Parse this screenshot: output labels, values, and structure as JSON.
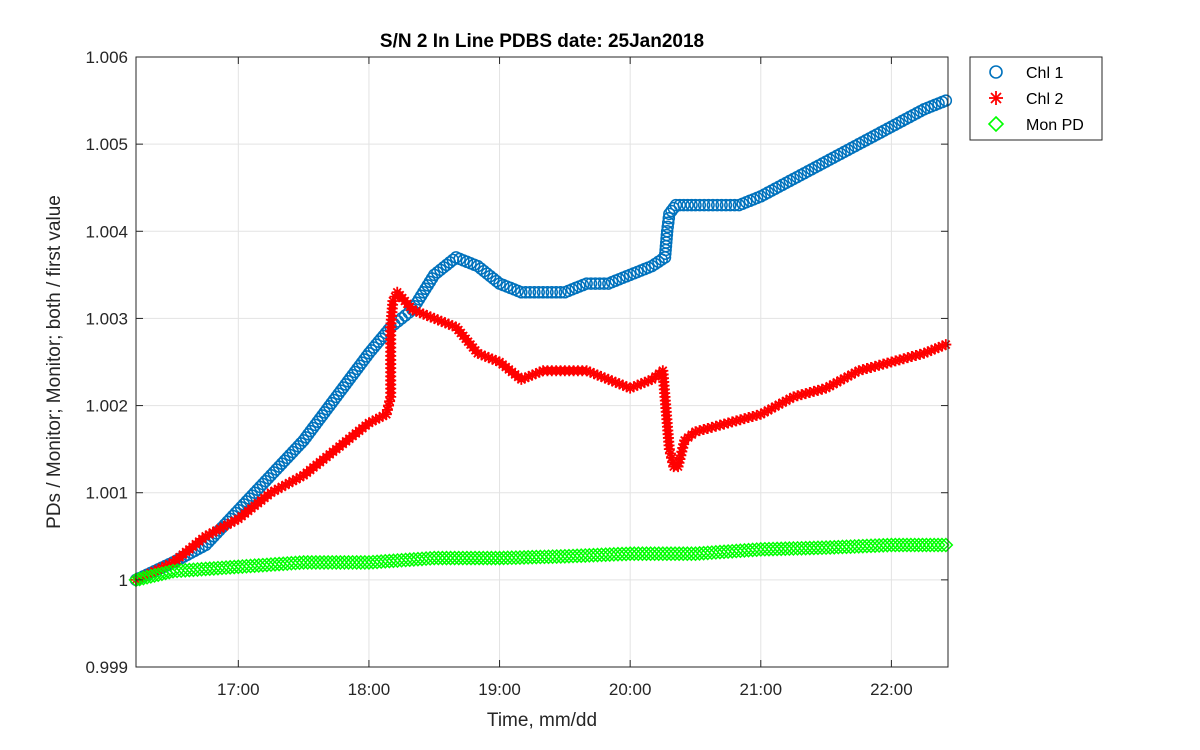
{
  "chart_data": {
    "type": "scatter",
    "title": "S/N 2 In Line PDBS date: 25Jan2018",
    "xlabel": "Time, mm/dd",
    "ylabel": "PDs / Monitor; Monitor; both / first value",
    "xlim": [
      "16:13",
      "22:26"
    ],
    "ylim": [
      0.999,
      1.006
    ],
    "xticks": [
      "17:00",
      "18:00",
      "19:00",
      "20:00",
      "21:00",
      "22:00"
    ],
    "yticks": [
      "0.999",
      "1",
      "1.001",
      "1.002",
      "1.003",
      "1.004",
      "1.005",
      "1.006"
    ],
    "grid": true,
    "legend": "top-right, outside plot",
    "series": [
      {
        "name": "Chl 1",
        "marker": "circle",
        "color": "#0072BD",
        "points": [
          [
            "16:13",
            1.0
          ],
          [
            "16:30",
            1.0002
          ],
          [
            "16:45",
            1.0004
          ],
          [
            "17:00",
            1.0008
          ],
          [
            "17:15",
            1.0012
          ],
          [
            "17:30",
            1.0016
          ],
          [
            "17:45",
            1.0021
          ],
          [
            "18:00",
            1.0026
          ],
          [
            "18:10",
            1.0029
          ],
          [
            "18:15",
            1.003
          ],
          [
            "18:20",
            1.0031
          ],
          [
            "18:30",
            1.0035
          ],
          [
            "18:40",
            1.0037
          ],
          [
            "18:50",
            1.0036
          ],
          [
            "19:00",
            1.0034
          ],
          [
            "19:10",
            1.0033
          ],
          [
            "19:20",
            1.0033
          ],
          [
            "19:30",
            1.0033
          ],
          [
            "19:40",
            1.0034
          ],
          [
            "19:50",
            1.0034
          ],
          [
            "20:00",
            1.0035
          ],
          [
            "20:10",
            1.0036
          ],
          [
            "20:16",
            1.0037
          ],
          [
            "20:17",
            1.004
          ],
          [
            "20:18",
            1.0042
          ],
          [
            "20:21",
            1.0043
          ],
          [
            "20:30",
            1.0043
          ],
          [
            "20:40",
            1.0043
          ],
          [
            "20:50",
            1.0043
          ],
          [
            "21:00",
            1.0044
          ],
          [
            "21:15",
            1.0046
          ],
          [
            "21:30",
            1.0048
          ],
          [
            "21:45",
            1.005
          ],
          [
            "22:00",
            1.0052
          ],
          [
            "22:15",
            1.0054
          ],
          [
            "22:25",
            1.0055
          ]
        ]
      },
      {
        "name": "Chl 2",
        "marker": "asterisk",
        "color": "#FF0000",
        "points": [
          [
            "16:13",
            1.0
          ],
          [
            "16:30",
            1.0002
          ],
          [
            "16:45",
            1.0005
          ],
          [
            "17:00",
            1.0007
          ],
          [
            "17:15",
            1.001
          ],
          [
            "17:30",
            1.0012
          ],
          [
            "17:45",
            1.0015
          ],
          [
            "18:00",
            1.0018
          ],
          [
            "18:08",
            1.0019
          ],
          [
            "18:10",
            1.0021
          ],
          [
            "18:10",
            1.0029
          ],
          [
            "18:11",
            1.0032
          ],
          [
            "18:13",
            1.0033
          ],
          [
            "18:20",
            1.0031
          ],
          [
            "18:30",
            1.003
          ],
          [
            "18:40",
            1.0029
          ],
          [
            "18:50",
            1.0026
          ],
          [
            "19:00",
            1.0025
          ],
          [
            "19:10",
            1.0023
          ],
          [
            "19:20",
            1.0024
          ],
          [
            "19:30",
            1.0024
          ],
          [
            "19:40",
            1.0024
          ],
          [
            "19:50",
            1.0023
          ],
          [
            "20:00",
            1.0022
          ],
          [
            "20:10",
            1.0023
          ],
          [
            "20:15",
            1.0024
          ],
          [
            "20:16",
            1.0021
          ],
          [
            "20:17",
            1.0018
          ],
          [
            "20:18",
            1.0015
          ],
          [
            "20:20",
            1.0013
          ],
          [
            "20:22",
            1.0013
          ],
          [
            "20:25",
            1.0016
          ],
          [
            "20:30",
            1.0017
          ],
          [
            "20:45",
            1.0018
          ],
          [
            "21:00",
            1.0019
          ],
          [
            "21:15",
            1.0021
          ],
          [
            "21:30",
            1.0022
          ],
          [
            "21:45",
            1.0024
          ],
          [
            "22:00",
            1.0025
          ],
          [
            "22:15",
            1.0026
          ],
          [
            "22:25",
            1.0027
          ]
        ]
      },
      {
        "name": "Mon PD",
        "marker": "diamond",
        "color": "#00FF00",
        "points": [
          [
            "16:13",
            1.0
          ],
          [
            "16:30",
            1.0001
          ],
          [
            "17:00",
            1.00015
          ],
          [
            "17:30",
            1.0002
          ],
          [
            "18:00",
            1.0002
          ],
          [
            "18:30",
            1.00025
          ],
          [
            "19:00",
            1.00025
          ],
          [
            "19:30",
            1.00027
          ],
          [
            "20:00",
            1.0003
          ],
          [
            "20:30",
            1.0003
          ],
          [
            "21:00",
            1.00035
          ],
          [
            "21:30",
            1.00037
          ],
          [
            "22:00",
            1.0004
          ],
          [
            "22:25",
            1.0004
          ]
        ]
      }
    ]
  }
}
